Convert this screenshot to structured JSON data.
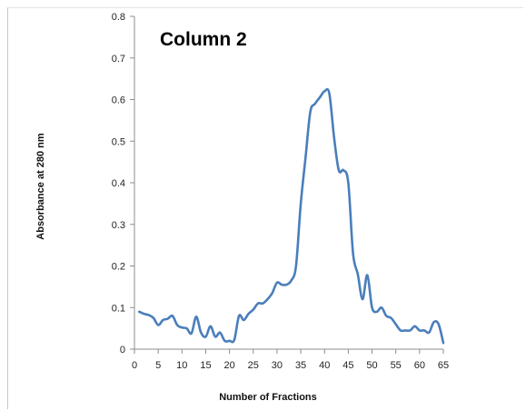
{
  "chart_data": {
    "type": "line",
    "title": "Column 2",
    "xlabel": "Number of Fractions",
    "ylabel": "Absorbance at 280 nm",
    "xlim": [
      0,
      65
    ],
    "ylim": [
      0,
      0.8
    ],
    "x_ticks": [
      "0",
      "5",
      "10",
      "15",
      "20",
      "25",
      "30",
      "35",
      "40",
      "45",
      "50",
      "55",
      "60",
      "65"
    ],
    "y_ticks": [
      "0",
      "0.1",
      "0.2",
      "0.3",
      "0.4",
      "0.5",
      "0.6",
      "0.7",
      "0.8"
    ],
    "grid": false,
    "series": [
      {
        "color": "#4a7ebb",
        "x": [
          1,
          2,
          3,
          4,
          5,
          6,
          7,
          8,
          9,
          10,
          11,
          12,
          13,
          14,
          15,
          16,
          17,
          18,
          19,
          20,
          21,
          22,
          23,
          24,
          25,
          26,
          27,
          28,
          29,
          30,
          31,
          32,
          33,
          34,
          35,
          36,
          37,
          38,
          39,
          40,
          41,
          42,
          43,
          44,
          45,
          46,
          47,
          48,
          49,
          50,
          51,
          52,
          53,
          54,
          55,
          56,
          57,
          58,
          59,
          60,
          61,
          62,
          63,
          64,
          65
        ],
        "values": [
          0.09,
          0.085,
          0.082,
          0.075,
          0.058,
          0.07,
          0.073,
          0.08,
          0.058,
          0.052,
          0.05,
          0.038,
          0.078,
          0.04,
          0.03,
          0.055,
          0.03,
          0.04,
          0.02,
          0.02,
          0.022,
          0.08,
          0.07,
          0.085,
          0.095,
          0.11,
          0.11,
          0.12,
          0.135,
          0.16,
          0.155,
          0.155,
          0.165,
          0.2,
          0.35,
          0.46,
          0.57,
          0.59,
          0.605,
          0.62,
          0.615,
          0.51,
          0.43,
          0.43,
          0.4,
          0.23,
          0.18,
          0.12,
          0.178,
          0.1,
          0.09,
          0.1,
          0.08,
          0.075,
          0.06,
          0.045,
          0.045,
          0.045,
          0.055,
          0.045,
          0.045,
          0.04,
          0.065,
          0.06,
          0.015
        ]
      }
    ]
  }
}
